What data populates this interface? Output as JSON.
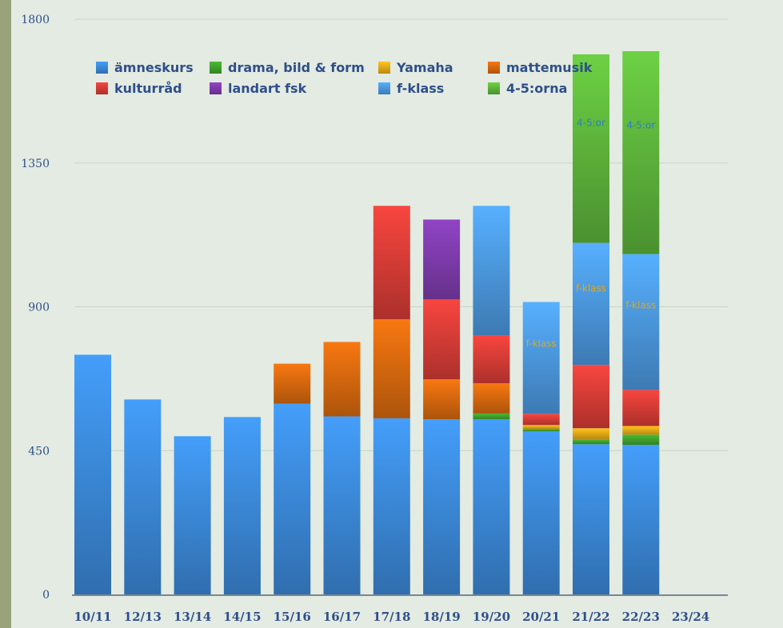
{
  "chart_data": {
    "type": "bar",
    "stacked": true,
    "title": "",
    "xlabel": "",
    "ylabel": "",
    "ylim": [
      0,
      1800
    ],
    "yticks": [
      0,
      450,
      900,
      1350,
      1800
    ],
    "grid": true,
    "legend_position": "top-left",
    "categories": [
      "10/11",
      "12/13",
      "13/14",
      "14/15",
      "15/16",
      "16/17",
      "17/18",
      "18/19",
      "19/20",
      "20/21",
      "21/22",
      "22/23",
      "23/24"
    ],
    "series": [
      {
        "name": "ämneskurs",
        "color": "#3a86d4",
        "values": [
          750,
          610,
          495,
          555,
          597,
          557,
          551,
          548,
          548,
          510,
          470,
          468,
          0
        ]
      },
      {
        "name": "drama, bild & form",
        "color": "#3f9e2c",
        "values": [
          0,
          0,
          0,
          0,
          0,
          0,
          0,
          0,
          18,
          8,
          15,
          32,
          0
        ]
      },
      {
        "name": "Yamaha",
        "color": "#e3a617",
        "values": [
          0,
          0,
          0,
          0,
          0,
          0,
          0,
          0,
          0,
          12,
          35,
          27,
          0
        ]
      },
      {
        "name": "mattemusik",
        "color": "#d2660e",
        "values": [
          0,
          0,
          0,
          0,
          125,
          233,
          310,
          125,
          95,
          0,
          0,
          0,
          0
        ]
      },
      {
        "name": "kulturråd",
        "color": "#d23b35",
        "values": [
          0,
          0,
          0,
          0,
          0,
          0,
          355,
          250,
          150,
          35,
          198,
          113,
          0
        ]
      },
      {
        "name": "landart fsk",
        "color": "#7b3aa8",
        "values": [
          0,
          0,
          0,
          0,
          0,
          0,
          0,
          250,
          0,
          0,
          0,
          0,
          0
        ]
      },
      {
        "name": "f-klass",
        "color": "#4a95da",
        "values": [
          0,
          0,
          0,
          0,
          0,
          0,
          0,
          0,
          405,
          350,
          382,
          425,
          0
        ]
      },
      {
        "name": "4-5:orna",
        "color": "#5cb13a",
        "values": [
          0,
          0,
          0,
          0,
          0,
          0,
          0,
          0,
          0,
          0,
          590,
          635,
          0
        ]
      }
    ],
    "annotations": [
      {
        "text": "f-klass",
        "category": "20/21",
        "series": "f-klass",
        "color": "#e3a617"
      },
      {
        "text": "f-klass",
        "category": "21/22",
        "series": "f-klass",
        "color": "#e3a617"
      },
      {
        "text": "f-klass",
        "category": "22/23",
        "series": "f-klass",
        "color": "#e3a617"
      },
      {
        "text": "4-5:or",
        "category": "21/22",
        "series": "4-5:orna",
        "color": "#2e7fc2"
      },
      {
        "text": "4-5:or",
        "category": "22/23",
        "series": "4-5:orna",
        "color": "#2e7fc2"
      }
    ]
  }
}
